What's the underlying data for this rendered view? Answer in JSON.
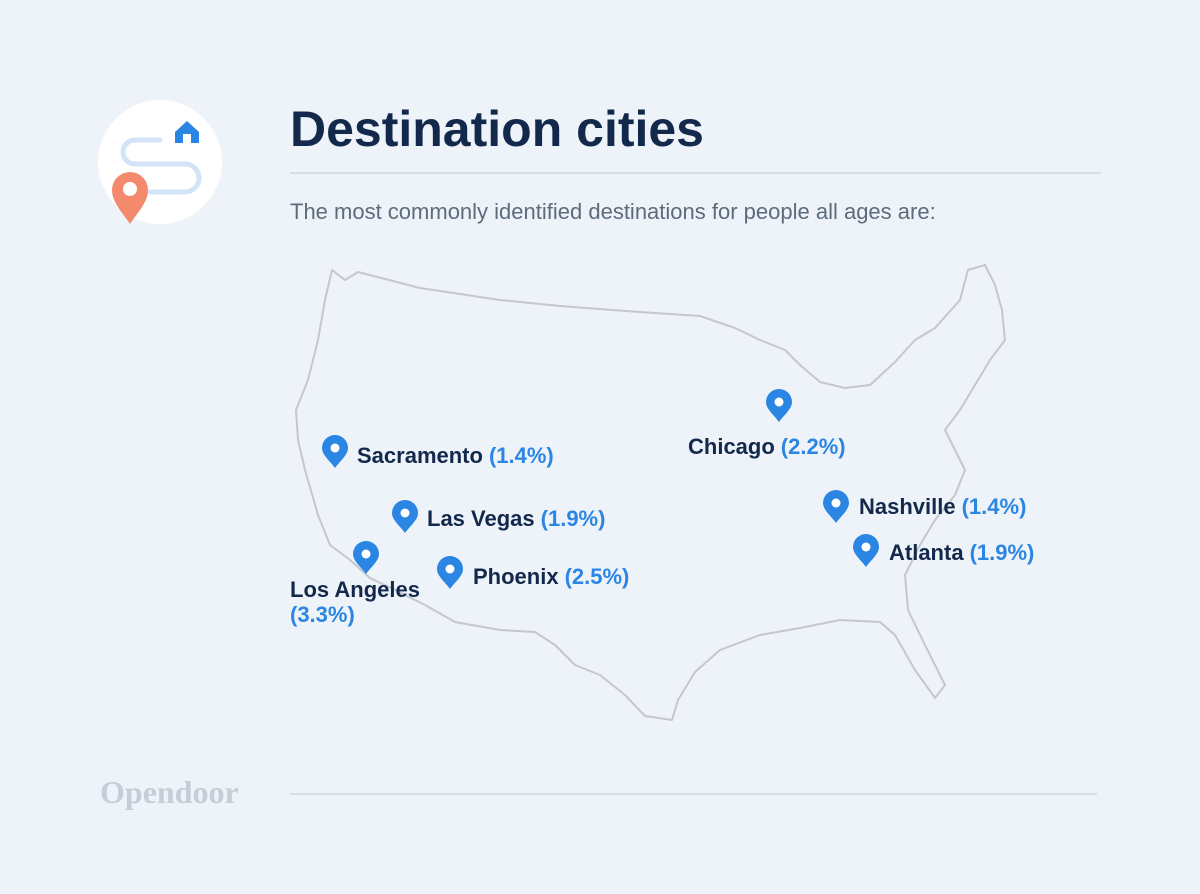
{
  "header": {
    "title": "Destination cities",
    "subtitle": "The most commonly identified destinations for people all ages are:"
  },
  "cities": [
    {
      "name": "Sacramento",
      "share": "(1.4%)"
    },
    {
      "name": "Las Vegas",
      "share": "(1.9%)"
    },
    {
      "name": "Los Angeles",
      "share": "(3.3%)"
    },
    {
      "name": "Phoenix",
      "share": "(2.5%)"
    },
    {
      "name": "Chicago",
      "share": "(2.2%)"
    },
    {
      "name": "Nashville",
      "share": "(1.4%)"
    },
    {
      "name": "Atlanta",
      "share": "(1.9%)"
    }
  ],
  "footer": {
    "brand": "Opendoor"
  }
}
